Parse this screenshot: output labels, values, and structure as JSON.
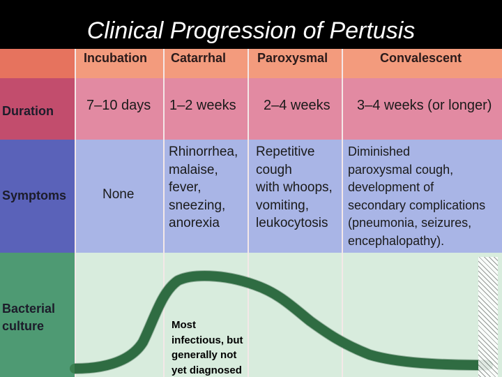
{
  "slide": {
    "title": "Clinical Progression of Pertusis"
  },
  "table": {
    "stages": [
      "Incubation",
      "Catarrhal",
      "Paroxysmal",
      "Convalescent"
    ],
    "row_labels": {
      "duration": "Duration",
      "symptoms": "Symptoms",
      "culture_line1": "Bacterial",
      "culture_line2": "culture"
    },
    "durations": [
      "7–10 days",
      "1–2 weeks",
      "2–4 weeks",
      "3–4 weeks (or longer)"
    ],
    "symptoms": [
      "None",
      "Rhinorrhea,\nmalaise,\nfever,\nsneezing,\nanorexia",
      "Repetitive\ncough\nwith whoops,\nvomiting,\nleukocytosis",
      "Diminished\nparoxysmal cough,\ndevelopment of\nsecondary complications\n(pneumonia, seizures,\nencephalopathy)."
    ]
  },
  "annotation": {
    "text": "Most\ninfectious, but\ngenerally not\nyet diagnosed"
  },
  "colors": {
    "title_bg": "#000000",
    "header_band": "#f39b7d",
    "duration_band": "#e28aa2",
    "symptoms_band": "#a9b5e6",
    "culture_band": "#d8ecdd",
    "curve": "#3a7f4f"
  }
}
